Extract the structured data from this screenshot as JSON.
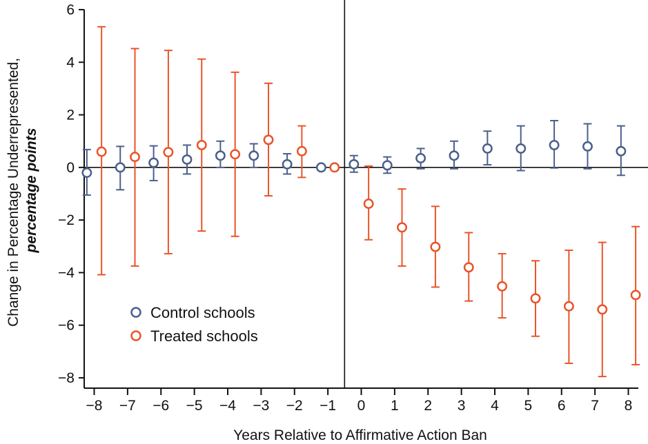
{
  "chart_data": {
    "type": "scatter",
    "xlabel": "Years Relative to Affirmative Action Ban",
    "ylabel_line1": "Change in Percentage Underrepresented,",
    "ylabel_line2": "percentage points",
    "xlim": [
      -8.3,
      8.3
    ],
    "ylim": [
      -8,
      6
    ],
    "xticks": [
      -8,
      -7,
      -6,
      -5,
      -4,
      -3,
      -2,
      -1,
      0,
      1,
      2,
      3,
      4,
      5,
      6,
      7,
      8
    ],
    "xtick_labels": [
      "−8",
      "−7",
      "−6",
      "−5",
      "−4",
      "−3",
      "−2",
      "−1",
      "0",
      "1",
      "2",
      "3",
      "4",
      "5",
      "6",
      "7",
      "8"
    ],
    "yticks": [
      -8,
      -6,
      -4,
      -2,
      0,
      2,
      4,
      6
    ],
    "ytick_labels": [
      "−8",
      "−6",
      "−4",
      "−2",
      "0",
      "2",
      "4",
      "6"
    ],
    "reference_lines": {
      "horizontal_y": 0,
      "vertical_x": -0.5
    },
    "legend_position": "lower-left",
    "series": [
      {
        "name": "Control schools",
        "color": "#4a5f8a",
        "points": [
          {
            "x": -8,
            "y": -0.2,
            "lo": -1.05,
            "hi": 0.68
          },
          {
            "x": -7,
            "y": 0.0,
            "lo": -0.85,
            "hi": 0.8
          },
          {
            "x": -6,
            "y": 0.18,
            "lo": -0.5,
            "hi": 0.82
          },
          {
            "x": -5,
            "y": 0.3,
            "lo": -0.25,
            "hi": 0.85
          },
          {
            "x": -4,
            "y": 0.45,
            "lo": 0.0,
            "hi": 1.0
          },
          {
            "x": -3,
            "y": 0.45,
            "lo": 0.0,
            "hi": 0.9
          },
          {
            "x": -2,
            "y": 0.12,
            "lo": -0.25,
            "hi": 0.52
          },
          {
            "x": -1,
            "y": 0.0,
            "lo": 0.0,
            "hi": 0.0
          },
          {
            "x": 0,
            "y": 0.12,
            "lo": -0.18,
            "hi": 0.45
          },
          {
            "x": 1,
            "y": 0.08,
            "lo": -0.22,
            "hi": 0.4
          },
          {
            "x": 2,
            "y": 0.35,
            "lo": -0.05,
            "hi": 0.72
          },
          {
            "x": 3,
            "y": 0.45,
            "lo": -0.05,
            "hi": 1.0
          },
          {
            "x": 4,
            "y": 0.72,
            "lo": 0.1,
            "hi": 1.38
          },
          {
            "x": 5,
            "y": 0.72,
            "lo": -0.12,
            "hi": 1.58
          },
          {
            "x": 6,
            "y": 0.85,
            "lo": -0.02,
            "hi": 1.78
          },
          {
            "x": 7,
            "y": 0.8,
            "lo": -0.05,
            "hi": 1.66
          },
          {
            "x": 8,
            "y": 0.62,
            "lo": -0.3,
            "hi": 1.58
          }
        ]
      },
      {
        "name": "Treated schools",
        "color": "#e8542a",
        "points": [
          {
            "x": -8,
            "y": 0.6,
            "lo": -4.08,
            "hi": 5.35
          },
          {
            "x": -7,
            "y": 0.4,
            "lo": -3.75,
            "hi": 4.52
          },
          {
            "x": -6,
            "y": 0.58,
            "lo": -3.28,
            "hi": 4.45
          },
          {
            "x": -5,
            "y": 0.85,
            "lo": -2.42,
            "hi": 4.12
          },
          {
            "x": -4,
            "y": 0.5,
            "lo": -2.62,
            "hi": 3.62
          },
          {
            "x": -3,
            "y": 1.05,
            "lo": -1.08,
            "hi": 3.2
          },
          {
            "x": -2,
            "y": 0.62,
            "lo": -0.38,
            "hi": 1.58
          },
          {
            "x": -1,
            "y": 0.0,
            "lo": 0.0,
            "hi": 0.0
          },
          {
            "x": 0,
            "y": -1.38,
            "lo": -2.75,
            "hi": 0.05
          },
          {
            "x": 1,
            "y": -2.28,
            "lo": -3.75,
            "hi": -0.82
          },
          {
            "x": 2,
            "y": -3.02,
            "lo": -4.55,
            "hi": -1.48
          },
          {
            "x": 3,
            "y": -3.8,
            "lo": -5.08,
            "hi": -2.48
          },
          {
            "x": 4,
            "y": -4.52,
            "lo": -5.72,
            "hi": -3.28
          },
          {
            "x": 5,
            "y": -4.98,
            "lo": -6.42,
            "hi": -3.55
          },
          {
            "x": 6,
            "y": -5.28,
            "lo": -7.45,
            "hi": -3.15
          },
          {
            "x": 7,
            "y": -5.4,
            "lo": -7.95,
            "hi": -2.85
          },
          {
            "x": 8,
            "y": -4.85,
            "lo": -7.5,
            "hi": -2.25
          }
        ]
      }
    ]
  }
}
